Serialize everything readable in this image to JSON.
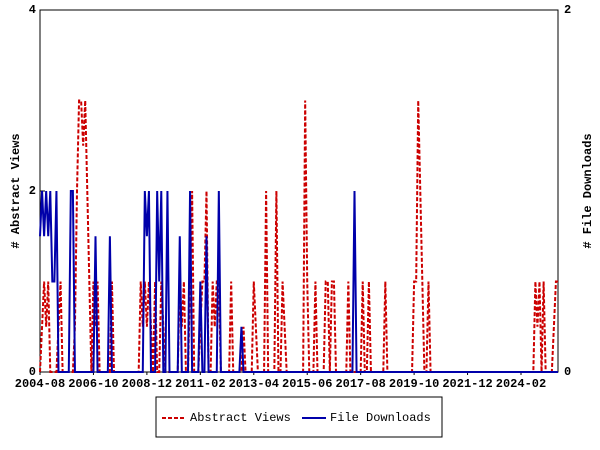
{
  "chart_data": {
    "type": "line",
    "y_label": "# Abstract Views",
    "y2_label": "# File Downloads",
    "categories": [
      "2004-08",
      null,
      null,
      null,
      null,
      null,
      null,
      null,
      null,
      null,
      null,
      null,
      null,
      null,
      null,
      null,
      null,
      null,
      null,
      null,
      null,
      null,
      null,
      null,
      null,
      null,
      "2006-10",
      null,
      null,
      null,
      null,
      null,
      null,
      null,
      null,
      null,
      null,
      null,
      null,
      null,
      null,
      null,
      null,
      null,
      null,
      null,
      null,
      null,
      null,
      null,
      null,
      null,
      "2008-12",
      null,
      null,
      null,
      null,
      null,
      null,
      null,
      null,
      null,
      null,
      null,
      null,
      null,
      null,
      null,
      null,
      null,
      null,
      null,
      null,
      null,
      null,
      null,
      null,
      null,
      "2011-02",
      null,
      null,
      null,
      null,
      null,
      null,
      null,
      null,
      null,
      null,
      null,
      null,
      null,
      null,
      null,
      null,
      null,
      null,
      null,
      null,
      null,
      null,
      null,
      null,
      null,
      "2013-04",
      null,
      null,
      null,
      null,
      null,
      null,
      null,
      null,
      null,
      null,
      null,
      null,
      null,
      null,
      null,
      null,
      null,
      null,
      null,
      null,
      null,
      null,
      null,
      null,
      null,
      "2015-06",
      null,
      null,
      null,
      null,
      null,
      null,
      null,
      null,
      null,
      null,
      null,
      null,
      null,
      null,
      null,
      null,
      null,
      null,
      null,
      null,
      null,
      null,
      null,
      null,
      null,
      "2017-08",
      null,
      null,
      null,
      null,
      null,
      null,
      null,
      null,
      null,
      null,
      null,
      null,
      null,
      null,
      null,
      null,
      null,
      null,
      null,
      null,
      null,
      null,
      null,
      null,
      null,
      "2019-10",
      null,
      null,
      null,
      null,
      null,
      null,
      null,
      null,
      null,
      null,
      null,
      null,
      null,
      null,
      null,
      null,
      null,
      null,
      null,
      null,
      null,
      null,
      null,
      null,
      null,
      "2021-12",
      null,
      null,
      null,
      null,
      null,
      null,
      null,
      null,
      null,
      null,
      null,
      null,
      null,
      null,
      null,
      null,
      null,
      null,
      null,
      null,
      null,
      null,
      null,
      null,
      null,
      "2024-02",
      null,
      null,
      null,
      null,
      null,
      null,
      null,
      null,
      null,
      null,
      null,
      null,
      null,
      null,
      null,
      null,
      null,
      null
    ],
    "series": [
      {
        "name": "Abstract Views",
        "color": "#cc0000",
        "line_style": "dashed",
        "values": [
          0,
          0.5,
          1,
          0.5,
          1,
          0,
          0,
          0,
          0,
          0.5,
          1,
          0,
          0,
          0,
          0,
          0,
          0,
          0.5,
          2,
          3,
          3,
          2.5,
          3,
          2,
          1,
          0,
          1,
          0.5,
          1,
          0,
          0,
          0,
          0,
          0,
          0,
          1,
          0,
          0,
          0,
          0,
          0,
          0,
          0,
          0,
          0,
          0,
          0,
          0,
          0,
          1,
          0.5,
          1,
          0.5,
          1,
          0.5,
          0,
          1,
          0,
          0,
          1,
          0.5,
          0,
          0,
          0,
          0,
          0,
          0,
          0,
          1,
          0.5,
          1,
          0,
          0,
          1,
          2,
          0,
          0,
          0,
          0.5,
          1,
          1,
          2,
          0,
          0,
          1,
          0.5,
          1,
          1,
          0,
          0,
          0,
          0,
          0,
          1,
          0,
          0,
          0,
          0,
          0,
          0.5,
          0,
          0,
          0,
          0,
          1,
          0.5,
          0,
          0,
          0,
          0,
          2,
          0,
          0,
          0,
          0,
          2,
          0,
          0,
          1,
          0.5,
          0,
          0,
          0,
          0,
          0,
          0,
          0,
          0,
          0,
          3,
          1,
          0,
          0,
          0,
          1,
          0,
          0,
          0,
          0,
          1,
          1,
          0,
          1,
          1,
          0,
          0,
          0,
          0,
          0,
          0,
          1,
          0,
          0,
          0,
          0,
          0,
          0,
          1,
          0,
          0,
          1,
          0,
          0,
          0,
          0,
          0,
          0,
          0,
          1,
          0,
          0,
          0,
          0,
          0,
          0,
          0,
          0,
          0,
          0,
          0,
          0,
          0,
          1,
          1,
          3,
          2,
          1,
          0,
          0,
          1,
          0,
          0,
          0,
          0,
          0,
          0,
          0,
          0,
          0,
          0,
          0,
          0,
          0,
          0,
          0,
          0,
          0,
          0,
          0,
          0,
          0,
          0,
          0,
          0,
          0,
          0,
          0,
          0,
          0,
          0,
          0,
          0,
          0,
          0,
          0,
          0,
          0,
          0,
          0,
          0,
          0,
          0,
          0,
          0,
          0,
          0,
          0,
          0,
          0,
          0,
          0,
          1,
          0.5,
          1,
          0,
          1,
          0,
          0,
          0,
          0,
          0.5,
          1,
          1
        ]
      },
      {
        "name": "File Downloads",
        "color": "#0000aa",
        "line_style": "solid",
        "axis": "y2",
        "values": [
          0.75,
          1,
          0.75,
          1,
          0.75,
          1,
          0.5,
          0.5,
          1,
          0,
          0,
          0,
          0,
          0,
          0,
          1,
          1,
          0,
          0,
          0,
          0,
          0,
          0,
          0,
          0,
          0,
          0,
          0.75,
          0,
          0,
          0,
          0,
          0,
          0,
          0.75,
          0,
          0,
          0,
          0,
          0,
          0,
          0,
          0,
          0,
          0,
          0,
          0,
          0,
          0,
          0,
          0,
          1,
          0.75,
          1,
          0,
          0,
          0,
          1,
          0.5,
          1,
          0,
          0,
          1,
          0,
          0,
          0,
          0,
          0,
          0.75,
          0,
          0,
          0,
          0,
          1,
          0,
          0,
          0,
          0,
          0.5,
          0,
          0,
          0.75,
          0,
          0,
          0,
          0,
          0,
          1,
          0,
          0,
          0,
          0,
          0,
          0,
          0,
          0,
          0,
          0,
          0.25,
          0,
          0,
          0,
          0,
          0,
          0,
          0,
          0,
          0,
          0,
          0,
          0,
          0,
          0,
          0,
          0,
          0,
          0,
          0,
          0,
          0,
          0,
          0,
          0,
          0,
          0,
          0,
          0,
          0,
          0,
          0,
          0,
          0,
          0,
          0,
          0,
          0,
          0,
          0,
          0,
          0,
          0,
          0,
          0,
          0,
          0,
          0,
          0,
          0,
          0,
          0,
          0,
          0,
          0,
          1,
          0,
          0,
          0,
          0,
          0,
          0,
          0,
          0,
          0,
          0,
          0,
          0,
          0,
          0,
          0,
          0,
          0,
          0,
          0,
          0,
          0,
          0,
          0,
          0,
          0,
          0,
          0,
          0,
          0,
          0,
          0,
          0,
          0,
          0,
          0,
          0,
          0,
          0,
          0,
          0,
          0,
          0,
          0,
          0,
          0,
          0,
          0,
          0,
          0,
          0,
          0,
          0,
          0,
          0,
          0,
          0,
          0,
          0,
          0,
          0,
          0,
          0,
          0,
          0,
          0,
          0,
          0,
          0,
          0,
          0,
          0,
          0,
          0,
          0,
          0,
          0,
          0,
          0,
          0,
          0,
          0,
          0,
          0,
          0,
          0,
          0,
          0,
          0,
          0,
          0,
          0,
          0,
          0,
          0,
          0,
          0,
          0,
          0,
          0
        ]
      }
    ],
    "ylim": [
      0,
      4
    ],
    "yticks": [
      0,
      2,
      4
    ],
    "y2lim": [
      0,
      2
    ],
    "y2ticks": [
      0,
      2
    ],
    "grid": false,
    "legend": "bottom"
  }
}
